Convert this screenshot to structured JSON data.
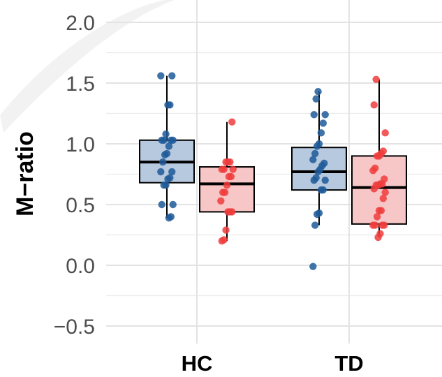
{
  "chart_data": {
    "type": "box",
    "ylabel": "M−ratio",
    "xlabel": "",
    "ylim": [
      -0.6,
      2.15
    ],
    "yticks": [
      -0.5,
      0.0,
      0.5,
      1.0,
      1.5,
      2.0
    ],
    "ytick_labels": [
      "−0.5",
      "0.0",
      "0.5",
      "1.0",
      "1.5",
      "2.0"
    ],
    "grid": true,
    "categories": [
      "HC",
      "TD"
    ],
    "series_colors": {
      "blue_fill": "#b3c6dc",
      "blue_point": "#1f5a99",
      "red_fill": "#f7c3c3",
      "red_point": "#f03c3c"
    },
    "groups": [
      {
        "category": "HC",
        "slot": 0,
        "color": "blue",
        "q1": 0.68,
        "median": 0.85,
        "q3": 1.03,
        "whisker_low": 0.39,
        "whisker_high": 1.56,
        "points": [
          1.56,
          1.56,
          1.32,
          1.32,
          1.08,
          1.03,
          1.03,
          1.03,
          1.03,
          0.98,
          0.92,
          0.91,
          0.85,
          0.77,
          0.77,
          0.72,
          0.71,
          0.66,
          0.66,
          0.5,
          0.5,
          0.4,
          0.39
        ]
      },
      {
        "category": "HC",
        "slot": 1,
        "color": "red",
        "q1": 0.44,
        "median": 0.67,
        "q3": 0.81,
        "whisker_low": 0.2,
        "whisker_high": 1.18,
        "points": [
          1.18,
          0.85,
          0.85,
          0.85,
          0.79,
          0.79,
          0.79,
          0.73,
          0.73,
          0.66,
          0.6,
          0.6,
          0.53,
          0.44,
          0.44,
          0.44,
          0.29,
          0.21,
          0.2
        ]
      },
      {
        "category": "TD",
        "slot": 0,
        "color": "blue",
        "q1": 0.62,
        "median": 0.77,
        "q3": 0.97,
        "whisker_low": 0.33,
        "whisker_high": 1.43,
        "points": [
          1.43,
          1.37,
          1.24,
          1.24,
          1.17,
          1.09,
          1.0,
          0.98,
          0.92,
          0.87,
          0.84,
          0.82,
          0.79,
          0.77,
          0.72,
          0.7,
          0.7,
          0.62,
          0.62,
          0.43,
          0.42,
          0.33,
          -0.01
        ]
      },
      {
        "category": "TD",
        "slot": 1,
        "color": "red",
        "q1": 0.34,
        "median": 0.64,
        "q3": 0.9,
        "whisker_low": 0.23,
        "whisker_high": 1.53,
        "points": [
          1.53,
          1.32,
          1.09,
          0.94,
          0.92,
          0.9,
          0.9,
          0.8,
          0.78,
          0.71,
          0.67,
          0.67,
          0.66,
          0.66,
          0.63,
          0.6,
          0.55,
          0.45,
          0.45,
          0.4,
          0.33,
          0.33,
          0.33,
          0.33,
          0.26,
          0.23
        ]
      }
    ]
  }
}
